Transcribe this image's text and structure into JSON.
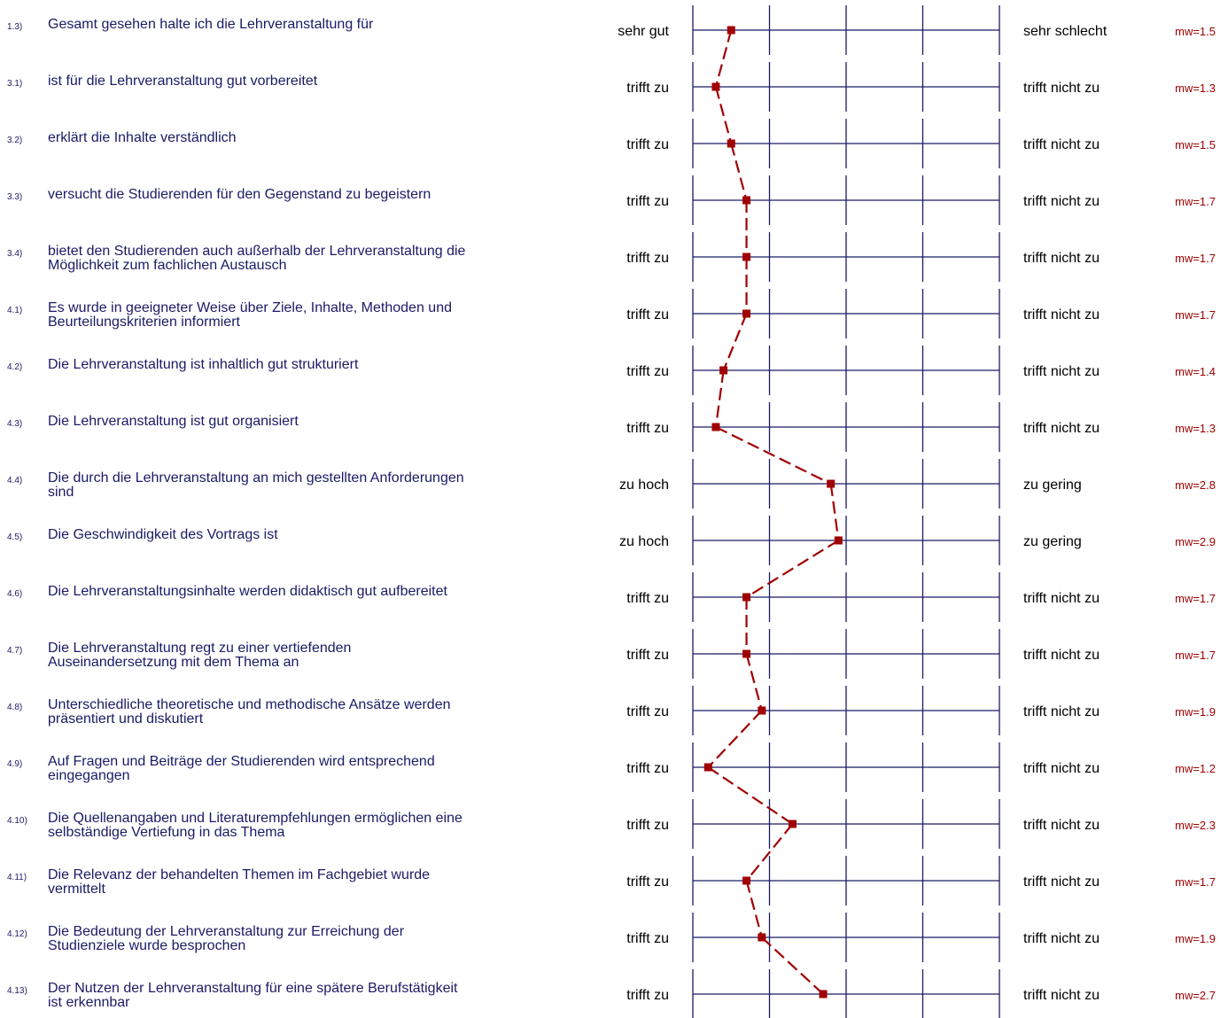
{
  "colors": {
    "question_text": "#1a1a66",
    "scale_lines": "#1a1a66",
    "profile_line": "#a00000",
    "marker": "#a00000",
    "mean_text": "#a00000",
    "pole_text": "#000000"
  },
  "chart_data": {
    "type": "line",
    "scale": {
      "min": 1,
      "max": 5
    },
    "items": [
      {
        "num": "1.3)",
        "lines": [
          "Gesamt gesehen halte ich die Lehrveranstaltung für"
        ],
        "left": "sehr gut",
        "right": "sehr schlecht",
        "mw": "mw=1.5",
        "value": 1.5
      },
      {
        "num": "3.1)",
        "lines": [
          "ist für die Lehrveranstaltung gut vorbereitet"
        ],
        "left": "trifft zu",
        "right": "trifft nicht zu",
        "mw": "mw=1.3",
        "value": 1.3
      },
      {
        "num": "3.2)",
        "lines": [
          "erklärt die Inhalte verständlich"
        ],
        "left": "trifft zu",
        "right": "trifft nicht zu",
        "mw": "mw=1.5",
        "value": 1.5
      },
      {
        "num": "3.3)",
        "lines": [
          "versucht die Studierenden für den Gegenstand zu begeistern"
        ],
        "left": "trifft zu",
        "right": "trifft nicht zu",
        "mw": "mw=1.7",
        "value": 1.7
      },
      {
        "num": "3.4)",
        "lines": [
          "bietet den Studierenden auch außerhalb der Lehrveranstaltung die",
          "Möglichkeit zum fachlichen Austausch"
        ],
        "left": "trifft zu",
        "right": "trifft nicht zu",
        "mw": "mw=1.7",
        "value": 1.7
      },
      {
        "num": "4.1)",
        "lines": [
          "Es wurde in geeigneter Weise über Ziele, Inhalte, Methoden und",
          "Beurteilungskriterien informiert"
        ],
        "left": "trifft zu",
        "right": "trifft nicht zu",
        "mw": "mw=1.7",
        "value": 1.7
      },
      {
        "num": "4.2)",
        "lines": [
          "Die Lehrveranstaltung ist inhaltlich gut strukturiert"
        ],
        "left": "trifft zu",
        "right": "trifft nicht zu",
        "mw": "mw=1.4",
        "value": 1.4
      },
      {
        "num": "4.3)",
        "lines": [
          "Die Lehrveranstaltung ist gut organisiert"
        ],
        "left": "trifft zu",
        "right": "trifft nicht zu",
        "mw": "mw=1.3",
        "value": 1.3
      },
      {
        "num": "4.4)",
        "lines": [
          "Die durch die Lehrveranstaltung an mich gestellten Anforderungen",
          "sind"
        ],
        "left": "zu hoch",
        "right": "zu gering",
        "mw": "mw=2.8",
        "value": 2.8
      },
      {
        "num": "4.5)",
        "lines": [
          "Die Geschwindigkeit des Vortrags ist"
        ],
        "left": "zu hoch",
        "right": "zu gering",
        "mw": "mw=2.9",
        "value": 2.9
      },
      {
        "num": "4.6)",
        "lines": [
          "Die Lehrveranstaltungsinhalte werden didaktisch gut aufbereitet"
        ],
        "left": "trifft zu",
        "right": "trifft nicht zu",
        "mw": "mw=1.7",
        "value": 1.7
      },
      {
        "num": "4.7)",
        "lines": [
          "Die Lehrveranstaltung regt zu einer vertiefenden",
          "Auseinandersetzung mit dem Thema an"
        ],
        "left": "trifft zu",
        "right": "trifft nicht zu",
        "mw": "mw=1.7",
        "value": 1.7
      },
      {
        "num": "4.8)",
        "lines": [
          "Unterschiedliche theoretische und methodische Ansätze werden",
          "präsentiert und diskutiert"
        ],
        "left": "trifft zu",
        "right": "trifft nicht zu",
        "mw": "mw=1.9",
        "value": 1.9
      },
      {
        "num": "4.9)",
        "lines": [
          "Auf Fragen und Beiträge der Studierenden wird entsprechend",
          "eingegangen"
        ],
        "left": "trifft zu",
        "right": "trifft nicht zu",
        "mw": "mw=1.2",
        "value": 1.2
      },
      {
        "num": "4.10)",
        "lines": [
          "Die Quellenangaben und Literaturempfehlungen ermöglichen eine",
          "selbständige Vertiefung in das Thema"
        ],
        "left": "trifft zu",
        "right": "trifft nicht zu",
        "mw": "mw=2.3",
        "value": 2.3
      },
      {
        "num": "4.11)",
        "lines": [
          "Die Relevanz der behandelten Themen im Fachgebiet wurde",
          "vermittelt"
        ],
        "left": "trifft zu",
        "right": "trifft nicht zu",
        "mw": "mw=1.7",
        "value": 1.7
      },
      {
        "num": "4.12)",
        "lines": [
          "Die Bedeutung der Lehrveranstaltung zur Erreichung der",
          "Studienziele wurde besprochen"
        ],
        "left": "trifft zu",
        "right": "trifft nicht zu",
        "mw": "mw=1.9",
        "value": 1.9
      },
      {
        "num": "4.13)",
        "lines": [
          "Der Nutzen der Lehrveranstaltung für eine spätere Berufstätigkeit",
          "ist erkennbar"
        ],
        "left": "trifft zu",
        "right": "trifft nicht zu",
        "mw": "mw=2.7",
        "value": 2.7
      }
    ]
  }
}
